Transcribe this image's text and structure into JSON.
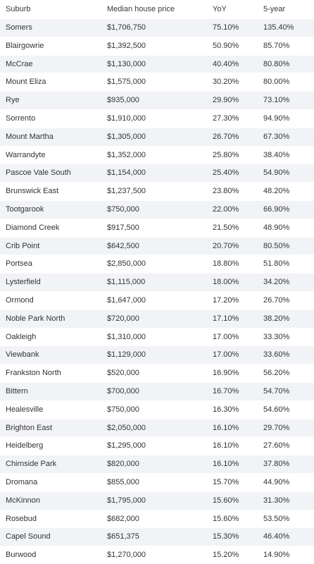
{
  "table": {
    "headers": [
      "Suburb",
      "Median house price",
      "YoY",
      "5-year"
    ],
    "rows": [
      [
        "Somers",
        "$1,706,750",
        "75.10%",
        "135.40%"
      ],
      [
        "Blairgowrie",
        "$1,392,500",
        "50.90%",
        "85.70%"
      ],
      [
        "McCrae",
        "$1,130,000",
        "40.40%",
        "80.80%"
      ],
      [
        "Mount Eliza",
        "$1,575,000",
        "30.20%",
        "80.00%"
      ],
      [
        "Rye",
        "$935,000",
        "29.90%",
        "73.10%"
      ],
      [
        "Sorrento",
        "$1,910,000",
        "27.30%",
        "94.90%"
      ],
      [
        "Mount Martha",
        "$1,305,000",
        "26.70%",
        "67.30%"
      ],
      [
        "Warrandyte",
        "$1,352,000",
        "25.80%",
        "38.40%"
      ],
      [
        "Pascoe Vale South",
        "$1,154,000",
        "25.40%",
        "54.90%"
      ],
      [
        "Brunswick East",
        "$1,237,500",
        "23.80%",
        "48.20%"
      ],
      [
        "Tootgarook",
        "$750,000",
        "22.00%",
        "66.90%"
      ],
      [
        "Diamond Creek",
        "$917,500",
        "21.50%",
        "48.90%"
      ],
      [
        "Crib Point",
        "$642,500",
        "20.70%",
        "80.50%"
      ],
      [
        "Portsea",
        "$2,850,000",
        "18.80%",
        "51.80%"
      ],
      [
        "Lysterfield",
        "$1,115,000",
        "18.00%",
        "34.20%"
      ],
      [
        "Ormond",
        "$1,647,000",
        "17.20%",
        "26.70%"
      ],
      [
        "Noble Park North",
        "$720,000",
        "17.10%",
        "38.20%"
      ],
      [
        "Oakleigh",
        "$1,310,000",
        "17.00%",
        "33.30%"
      ],
      [
        "Viewbank",
        "$1,129,000",
        "17.00%",
        "33.60%"
      ],
      [
        "Frankston North",
        "$520,000",
        "16.90%",
        "56.20%"
      ],
      [
        "Bittern",
        "$700,000",
        "16.70%",
        "54.70%"
      ],
      [
        "Healesville",
        "$750,000",
        "16.30%",
        "54.60%"
      ],
      [
        "Brighton East",
        "$2,050,000",
        "16.10%",
        "29.70%"
      ],
      [
        "Heidelberg",
        "$1,295,000",
        "16.10%",
        "27.60%"
      ],
      [
        "Chirnside Park",
        "$820,000",
        "16.10%",
        "37.80%"
      ],
      [
        "Dromana",
        "$855,000",
        "15.70%",
        "44.90%"
      ],
      [
        "McKinnon",
        "$1,795,000",
        "15.60%",
        "31.30%"
      ],
      [
        "Rosebud",
        "$682,000",
        "15.60%",
        "53.50%"
      ],
      [
        "Capel Sound",
        "$651,375",
        "15.30%",
        "46.40%"
      ],
      [
        "Burwood",
        "$1,270,000",
        "15.20%",
        "14.90%"
      ]
    ]
  },
  "colors": {
    "stripe": "#f1f3f6",
    "text": "#333333"
  }
}
